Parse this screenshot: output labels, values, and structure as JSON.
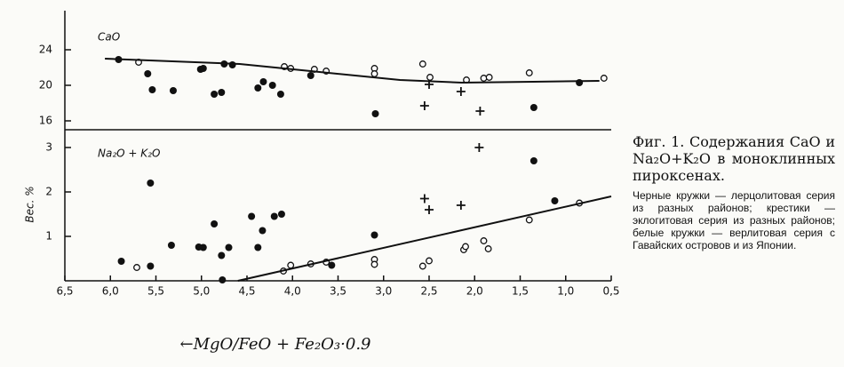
{
  "chart_data": [
    {
      "type": "scatter",
      "panel_label": "CaO",
      "xlim": [
        6.5,
        0.5
      ],
      "ylim": [
        15,
        28.4
      ],
      "yticks": [
        16,
        20,
        24
      ],
      "series": [
        {
          "marker": "filled",
          "color": "#111111",
          "x": [
            5.91,
            5.59,
            5.54,
            5.31,
            5.01,
            4.98,
            4.86,
            4.78,
            4.75,
            4.66,
            4.38,
            4.32,
            4.22,
            4.13,
            3.8,
            3.09,
            1.35,
            0.85
          ],
          "values": [
            22.9,
            21.3,
            19.5,
            19.4,
            21.8,
            21.9,
            19.0,
            19.2,
            22.4,
            22.3,
            19.7,
            20.4,
            20.0,
            19.0,
            21.1,
            16.8,
            17.5,
            20.3
          ]
        },
        {
          "marker": "open",
          "color": "#111111",
          "x": [
            5.69,
            4.09,
            4.02,
            3.76,
            3.63,
            3.1,
            3.1,
            2.57,
            2.49,
            2.09,
            1.9,
            1.84,
            1.4,
            0.58
          ],
          "values": [
            22.6,
            22.1,
            21.9,
            21.8,
            21.6,
            21.9,
            21.3,
            22.4,
            20.9,
            20.6,
            20.8,
            20.9,
            21.4,
            20.8
          ]
        },
        {
          "marker": "cross",
          "color": "#111111",
          "x": [
            2.5,
            2.55,
            2.15,
            1.94
          ],
          "values": [
            20.1,
            17.7,
            19.3,
            17.1
          ]
        },
        {
          "marker": "line",
          "color": "#111111",
          "x": [
            6.06,
            4.58,
            3.8,
            2.82,
            2.14,
            1.36,
            0.63
          ],
          "values": [
            23.0,
            22.4,
            21.6,
            20.6,
            20.3,
            20.4,
            20.5
          ]
        }
      ]
    },
    {
      "type": "scatter",
      "panel_label": "Na₂O + K₂O",
      "ylabel": "Вес. %",
      "xlabel": "←MgO/FeO + Fe₂O₃·0.9",
      "xlim": [
        6.5,
        0.5
      ],
      "ylim": [
        0,
        3.4
      ],
      "yticks": [
        1,
        2,
        3
      ],
      "xticks": [
        {
          "value": 6.5,
          "label": "6,5"
        },
        {
          "value": 6.0,
          "label": "6,0"
        },
        {
          "value": 5.5,
          "label": "5,5"
        },
        {
          "value": 5.0,
          "label": "5,0"
        },
        {
          "value": 4.5,
          "label": "4,5"
        },
        {
          "value": 4.0,
          "label": "4,0"
        },
        {
          "value": 3.5,
          "label": "3,5"
        },
        {
          "value": 3.0,
          "label": "3,0"
        },
        {
          "value": 2.5,
          "label": "2,5"
        },
        {
          "value": 2.0,
          "label": "2,0"
        },
        {
          "value": 1.5,
          "label": "1,5"
        },
        {
          "value": 1.0,
          "label": "1,0"
        },
        {
          "value": 0.5,
          "label": "0,5"
        }
      ],
      "series": [
        {
          "marker": "filled",
          "color": "#111111",
          "x": [
            5.88,
            5.56,
            5.56,
            5.33,
            5.03,
            4.98,
            4.86,
            4.78,
            4.7,
            4.45,
            4.38,
            4.33,
            4.2,
            4.12,
            4.77,
            3.57,
            3.1,
            1.35,
            1.12
          ],
          "values": [
            0.44,
            0.33,
            2.2,
            0.8,
            0.76,
            0.75,
            1.28,
            0.57,
            0.75,
            1.45,
            0.75,
            1.13,
            1.45,
            1.5,
            0.02,
            0.35,
            1.03,
            2.7,
            1.8
          ]
        },
        {
          "marker": "open",
          "color": "#111111",
          "x": [
            5.71,
            4.1,
            4.02,
            3.8,
            3.63,
            3.1,
            3.1,
            2.57,
            2.5,
            2.12,
            2.1,
            1.9,
            1.85,
            1.4,
            0.85
          ],
          "values": [
            0.3,
            0.22,
            0.35,
            0.38,
            0.42,
            0.48,
            0.37,
            0.33,
            0.45,
            0.7,
            0.77,
            0.9,
            0.72,
            1.37,
            1.75
          ]
        },
        {
          "marker": "cross",
          "color": "#111111",
          "x": [
            2.55,
            2.5,
            2.15,
            1.95
          ],
          "values": [
            1.85,
            1.6,
            1.7,
            3.0
          ]
        },
        {
          "marker": "line",
          "color": "#111111",
          "x": [
            4.6,
            0.5
          ],
          "values": [
            0.0,
            1.9
          ]
        }
      ]
    }
  ],
  "caption": {
    "title": "Фиг. 1. Содержания CaO и Na₂O+K₂O в моноклинных пироксенах.",
    "body": "Черные кружки — лерцолитовая серия из разных районов; крестики — эклогитовая серия из разных районов; белые кружки — верлитовая серия с Гавайских островов и из Японии."
  }
}
